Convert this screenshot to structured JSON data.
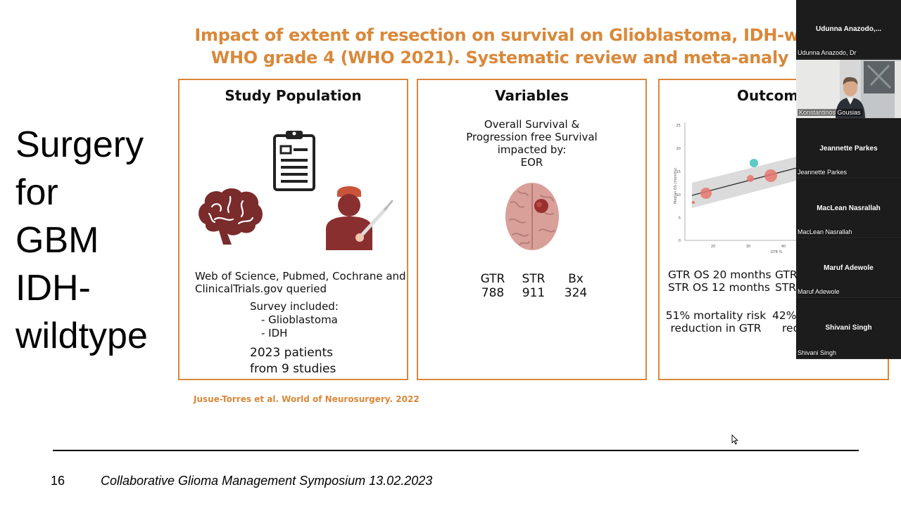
{
  "slide": {
    "title_lines": [
      "Impact of extent of resection on survival on Glioblastoma, IDH-wi",
      "WHO grade 4 (WHO 2021). Systematic review and meta-analy"
    ],
    "side_title_lines": [
      "Surgery",
      "for",
      "GBM",
      "IDH-",
      "wildtype"
    ],
    "panels": {
      "study": {
        "heading": "Study Population",
        "sources": "Web of Science, Pubmed, Cochrane and ClinicalTrials.gov queried",
        "survey_label": "Survey included:",
        "survey_items": [
          "- Glioblastoma",
          "- IDH"
        ],
        "patients": "2023 patients",
        "studies": "from 9 studies"
      },
      "variables": {
        "heading": "Variables",
        "description_lines": [
          "Overall Survival &",
          "Progression free Survival",
          "impacted by:",
          "EOR"
        ],
        "groups": [
          {
            "label": "GTR",
            "value": "788"
          },
          {
            "label": "STR",
            "value": "911"
          },
          {
            "label": "Bx",
            "value": "324"
          }
        ]
      },
      "outcome": {
        "heading": "Outcom",
        "os_lines": [
          "GTR OS 20 months",
          "STR OS 12 months"
        ],
        "pfs_lines": [
          "GTR",
          "STR"
        ],
        "mortality_lines": [
          "51% mortality risk",
          "reduction in GTR"
        ],
        "pfs_risk_lines": [
          "42%",
          "red"
        ],
        "plot": {
          "ylabel": "Median OS (months)",
          "xlabel": "GTR %",
          "yticks": [
            "25",
            "20",
            "15",
            "10",
            "5",
            "0"
          ],
          "xticks": [
            "20",
            "30",
            "40"
          ]
        }
      }
    },
    "citation": "Jusue-Torres et al. World of Neurosurgery. 2022",
    "slide_number": "16",
    "footer": "Collaborative Glioma Management Symposium 13.02.2023"
  },
  "participants": [
    {
      "display": "Udunna  Anazodo,...",
      "nameplate": "Udunna Anazodo, Dr",
      "video": false
    },
    {
      "display": "",
      "nameplate": "Konstantinos Gousias",
      "video": true
    },
    {
      "display": "Jeannette Parkes",
      "nameplate": "Jeannette Parkes",
      "video": false
    },
    {
      "display": "MacLean Nasrallah",
      "nameplate": "MacLean Nasrallah",
      "video": false
    },
    {
      "display": "Maruf Adewole",
      "nameplate": "Maruf Adewole",
      "video": false
    },
    {
      "display": "Shivani Singh",
      "nameplate": "Shivani Singh",
      "video": false
    }
  ],
  "colors": {
    "accent": "#d9883a",
    "brain": "#7a2b2b",
    "surgeon": "#8a2f2f",
    "meeting_bg": "#141414"
  }
}
